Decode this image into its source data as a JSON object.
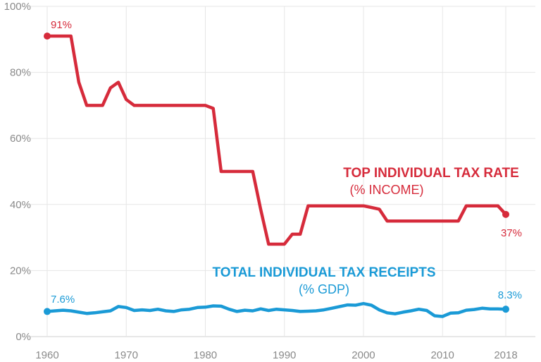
{
  "chart_data": {
    "type": "line",
    "xlim": [
      1960,
      2018
    ],
    "ylim": [
      0,
      100
    ],
    "x_ticks": [
      1960,
      1970,
      1980,
      1990,
      2000,
      2010,
      2018
    ],
    "y_ticks": [
      {
        "value": 0,
        "label": "0%"
      },
      {
        "value": 20,
        "label": "20%"
      },
      {
        "value": 40,
        "label": "40%"
      },
      {
        "value": 60,
        "label": "60%"
      },
      {
        "value": 80,
        "label": "80%"
      },
      {
        "value": 100,
        "label": "100%"
      }
    ],
    "grid": true,
    "legend": "inline",
    "series": [
      {
        "key": "top_rate",
        "name": "TOP INDIVIDUAL TAX RATE",
        "subname": "(% INCOME)",
        "color": "#d62b3b",
        "start_label": "91%",
        "end_label": "37%",
        "x": [
          1960,
          1961,
          1962,
          1963,
          1964,
          1965,
          1966,
          1967,
          1968,
          1969,
          1970,
          1971,
          1972,
          1973,
          1974,
          1975,
          1976,
          1977,
          1978,
          1979,
          1980,
          1981,
          1982,
          1983,
          1984,
          1985,
          1986,
          1987,
          1988,
          1989,
          1990,
          1991,
          1992,
          1993,
          1994,
          1995,
          1996,
          1997,
          1998,
          1999,
          2000,
          2001,
          2002,
          2003,
          2004,
          2005,
          2006,
          2007,
          2008,
          2009,
          2010,
          2011,
          2012,
          2013,
          2014,
          2015,
          2016,
          2017,
          2018
        ],
        "values": [
          91,
          91,
          91,
          91,
          77,
          70,
          70,
          70,
          75.3,
          77,
          71.8,
          70,
          70,
          70,
          70,
          70,
          70,
          70,
          70,
          70,
          70,
          69.1,
          50,
          50,
          50,
          50,
          50,
          38.5,
          28,
          28,
          28,
          31,
          31,
          39.6,
          39.6,
          39.6,
          39.6,
          39.6,
          39.6,
          39.6,
          39.6,
          39.1,
          38.6,
          35,
          35,
          35,
          35,
          35,
          35,
          35,
          35,
          35,
          35,
          39.6,
          39.6,
          39.6,
          39.6,
          39.6,
          37
        ]
      },
      {
        "key": "receipts",
        "name": "TOTAL INDIVIDUAL TAX RECEIPTS",
        "subname": "(% GDP)",
        "color": "#1a9ad6",
        "start_label": "7.6%",
        "end_label": "8.3%",
        "x": [
          1960,
          1961,
          1962,
          1963,
          1964,
          1965,
          1966,
          1967,
          1968,
          1969,
          1970,
          1971,
          1972,
          1973,
          1974,
          1975,
          1976,
          1977,
          1978,
          1979,
          1980,
          1981,
          1982,
          1983,
          1984,
          1985,
          1986,
          1987,
          1988,
          1989,
          1990,
          1991,
          1992,
          1993,
          1994,
          1995,
          1996,
          1997,
          1998,
          1999,
          2000,
          2001,
          2002,
          2003,
          2004,
          2005,
          2006,
          2007,
          2008,
          2009,
          2010,
          2011,
          2012,
          2013,
          2014,
          2015,
          2016,
          2017,
          2018
        ],
        "values": [
          7.6,
          7.8,
          8,
          7.8,
          7.4,
          7,
          7.2,
          7.5,
          7.8,
          9.1,
          8.8,
          7.9,
          8.1,
          7.9,
          8.3,
          7.8,
          7.6,
          8.1,
          8.3,
          8.8,
          8.9,
          9.3,
          9.2,
          8.3,
          7.6,
          8,
          7.8,
          8.4,
          7.9,
          8.3,
          8.1,
          7.9,
          7.6,
          7.7,
          7.8,
          8.1,
          8.6,
          9.1,
          9.6,
          9.5,
          10,
          9.5,
          8.1,
          7.2,
          6.9,
          7.4,
          7.8,
          8.3,
          7.9,
          6.3,
          6.1,
          7.1,
          7.2,
          8,
          8.2,
          8.6,
          8.4,
          8.4,
          8.3
        ]
      }
    ]
  }
}
